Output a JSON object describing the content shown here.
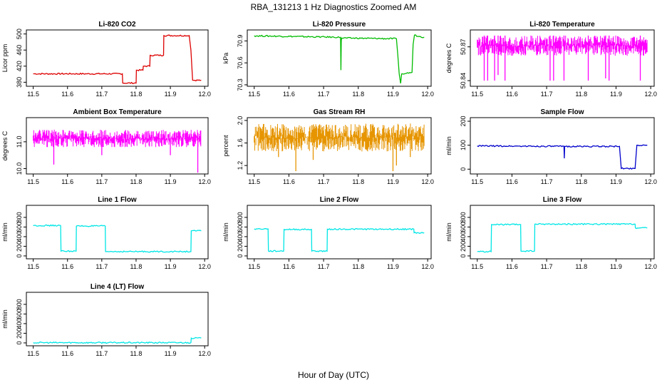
{
  "figure": {
    "title": "RBA_131213  1 Hz Diagnostics Zoomed AM",
    "xlabel": "Hour of Day (UTC)"
  },
  "chart_data": [
    {
      "type": "line",
      "title": "Li-820 CO2",
      "ylabel": "Licor ppm",
      "color": "#dd0000",
      "xlim": [
        11.48,
        12.01
      ],
      "ylim": [
        370,
        510
      ],
      "x_ticks": [
        "11.5",
        "11.6",
        "11.7",
        "11.8",
        "11.9",
        "12.0"
      ],
      "y_ticks": [
        "380",
        "420",
        "460",
        "500"
      ],
      "x": [
        11.5,
        11.76,
        11.761,
        11.8,
        11.801,
        11.82,
        11.821,
        11.84,
        11.841,
        11.88,
        11.881,
        11.955,
        11.96,
        11.965,
        11.99
      ],
      "y": [
        401,
        401,
        378,
        378,
        410,
        410,
        420,
        420,
        447,
        447,
        496,
        496,
        460,
        385,
        385
      ]
    },
    {
      "type": "line",
      "title": "Li-820 Pressure",
      "ylabel": "kPa",
      "color": "#00bb00",
      "xlim": [
        11.48,
        12.01
      ],
      "ylim": [
        70.28,
        71.05
      ],
      "x_ticks": [
        "11.5",
        "11.6",
        "11.7",
        "11.8",
        "11.9",
        "12.0"
      ],
      "y_ticks": [
        "70.3",
        "70.6",
        "70.9"
      ],
      "x": [
        11.5,
        11.749,
        11.75,
        11.751,
        11.752,
        11.91,
        11.918,
        11.922,
        11.925,
        11.928,
        11.955,
        11.958,
        11.962,
        11.975,
        11.99
      ],
      "y": [
        70.97,
        70.95,
        70.5,
        70.9,
        70.94,
        70.93,
        70.45,
        70.32,
        70.45,
        70.45,
        70.47,
        70.85,
        70.98,
        70.96,
        70.95
      ]
    },
    {
      "type": "line",
      "title": "Li-820 Temperature",
      "ylabel": "degrees C",
      "color": "#ff00ff",
      "xlim": [
        11.48,
        12.01
      ],
      "ylim": [
        50.835,
        50.885
      ],
      "x_ticks": [
        "11.5",
        "11.6",
        "11.7",
        "11.8",
        "11.9",
        "12.0"
      ],
      "y_ticks": [
        "50.84",
        "50.87"
      ],
      "band": [
        50.862,
        50.88
      ],
      "x": [
        11.52,
        11.53,
        11.55,
        11.56,
        11.58,
        11.71,
        11.72,
        11.75,
        11.82,
        11.87,
        11.88,
        11.97
      ],
      "y": [
        50.84,
        50.84,
        50.84,
        50.845,
        50.84,
        50.84,
        50.84,
        50.84,
        50.84,
        50.842,
        50.84,
        50.84
      ]
    },
    {
      "type": "line",
      "title": "Ambient Box Temperature",
      "ylabel": "degrees C",
      "color": "#ff00ff",
      "xlim": [
        11.48,
        12.01
      ],
      "ylim": [
        9.8,
        11.9
      ],
      "x_ticks": [
        "11.5",
        "11.6",
        "11.7",
        "11.8",
        "11.9",
        "12.0"
      ],
      "y_ticks": [
        "10.0",
        "11.0"
      ],
      "band": [
        10.8,
        11.45
      ],
      "x": [
        11.56,
        11.7,
        11.9,
        11.98
      ],
      "y": [
        10.15,
        10.5,
        10.5,
        9.85
      ]
    },
    {
      "type": "line",
      "title": "Gas Stream RH",
      "ylabel": "percent",
      "color": "#e69500",
      "xlim": [
        11.48,
        12.01
      ],
      "ylim": [
        1.05,
        2.05
      ],
      "x_ticks": [
        "11.5",
        "11.6",
        "11.7",
        "11.8",
        "11.9",
        "12.0"
      ],
      "y_ticks": [
        "1.2",
        "1.6",
        "2.0"
      ],
      "band": [
        1.45,
        1.95
      ],
      "x": [
        11.57,
        11.62,
        11.67,
        11.9,
        11.91,
        11.95
      ],
      "y": [
        1.35,
        1.1,
        1.3,
        1.1,
        1.2,
        1.35
      ]
    },
    {
      "type": "line",
      "title": "Sample Flow",
      "ylabel": "ml/min",
      "color": "#0000cc",
      "xlim": [
        11.48,
        12.01
      ],
      "ylim": [
        -20,
        215
      ],
      "x_ticks": [
        "11.5",
        "11.6",
        "11.7",
        "11.8",
        "11.9",
        "12.0"
      ],
      "y_ticks": [
        "0",
        "100",
        "200"
      ],
      "x": [
        11.5,
        11.75,
        11.751,
        11.752,
        11.91,
        11.915,
        11.955,
        11.96,
        11.99
      ],
      "y": [
        97,
        95,
        45,
        95,
        95,
        3,
        3,
        100,
        100
      ]
    },
    {
      "type": "line",
      "title": "Line 1 Flow",
      "ylabel": "ml/min",
      "color": "#00e6e6",
      "xlim": [
        11.48,
        12.01
      ],
      "ylim": [
        -60,
        1050
      ],
      "x_ticks": [
        "11.5",
        "11.6",
        "11.7",
        "11.8",
        "11.9",
        "12.0"
      ],
      "y_ticks": [
        "0",
        "200",
        "400",
        "600",
        "800"
      ],
      "x": [
        11.5,
        11.58,
        11.581,
        11.625,
        11.626,
        11.71,
        11.711,
        11.96,
        11.961,
        11.99
      ],
      "y": [
        630,
        630,
        100,
        100,
        620,
        620,
        90,
        90,
        520,
        520
      ]
    },
    {
      "type": "line",
      "title": "Line 2 Flow",
      "ylabel": "ml/min",
      "color": "#00e6e6",
      "xlim": [
        11.48,
        12.01
      ],
      "ylim": [
        -60,
        1050
      ],
      "x_ticks": [
        "11.5",
        "11.6",
        "11.7",
        "11.8",
        "11.9",
        "12.0"
      ],
      "y_ticks": [
        "0",
        "200",
        "400",
        "600",
        "800"
      ],
      "x": [
        11.5,
        11.54,
        11.541,
        11.585,
        11.586,
        11.665,
        11.666,
        11.71,
        11.711,
        11.96,
        11.961,
        11.99
      ],
      "y": [
        560,
        560,
        100,
        100,
        550,
        550,
        100,
        100,
        555,
        555,
        480,
        480
      ]
    },
    {
      "type": "line",
      "title": "Line 3 Flow",
      "ylabel": "ml/min",
      "color": "#00e6e6",
      "xlim": [
        11.48,
        12.01
      ],
      "ylim": [
        -60,
        1050
      ],
      "x_ticks": [
        "11.5",
        "11.6",
        "11.7",
        "11.8",
        "11.9",
        "12.0"
      ],
      "y_ticks": [
        "0",
        "200",
        "400",
        "600",
        "800"
      ],
      "x": [
        11.5,
        11.54,
        11.541,
        11.625,
        11.626,
        11.665,
        11.666,
        11.955,
        11.956,
        11.99
      ],
      "y": [
        90,
        90,
        650,
        650,
        100,
        100,
        660,
        660,
        580,
        580
      ]
    },
    {
      "type": "line",
      "title": "Line 4 (LT) Flow",
      "ylabel": "ml/min",
      "color": "#00e6e6",
      "xlim": [
        11.48,
        12.01
      ],
      "ylim": [
        -60,
        1050
      ],
      "x_ticks": [
        "11.5",
        "11.6",
        "11.7",
        "11.8",
        "11.9",
        "12.0"
      ],
      "y_ticks": [
        "0",
        "200",
        "400",
        "600",
        "800"
      ],
      "x": [
        11.5,
        11.96,
        11.961,
        11.99
      ],
      "y": [
        5,
        5,
        100,
        100
      ]
    }
  ]
}
